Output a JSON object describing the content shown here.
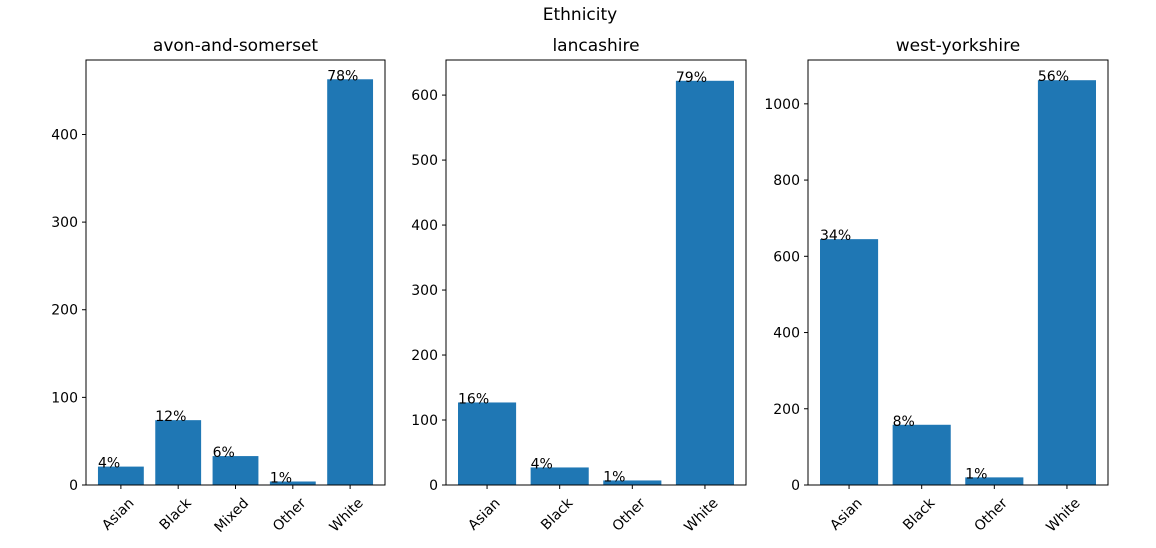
{
  "figure": {
    "title": "Ethnicity"
  },
  "chart_data": [
    {
      "type": "bar",
      "title": "avon-and-somerset",
      "xlabel": "",
      "ylabel": "",
      "categories": [
        "Asian",
        "Black",
        "Mixed",
        "Other",
        "White"
      ],
      "values": [
        21,
        74,
        33,
        4,
        463
      ],
      "labels": [
        "4%",
        "12%",
        "6%",
        "1%",
        "78%"
      ],
      "ylim": [
        0,
        485
      ],
      "yticks": [
        0,
        100,
        200,
        300,
        400
      ],
      "bar_color": "#1f77b4",
      "grid": false,
      "legend": "none"
    },
    {
      "type": "bar",
      "title": "lancashire",
      "xlabel": "",
      "ylabel": "",
      "categories": [
        "Asian",
        "Black",
        "Other",
        "White"
      ],
      "values": [
        127,
        27,
        7,
        622
      ],
      "labels": [
        "16%",
        "4%",
        "1%",
        "79%"
      ],
      "ylim": [
        0,
        654
      ],
      "yticks": [
        0,
        100,
        200,
        300,
        400,
        500,
        600
      ],
      "bar_color": "#1f77b4",
      "grid": false,
      "legend": "none"
    },
    {
      "type": "bar",
      "title": "west-yorkshire",
      "xlabel": "",
      "ylabel": "",
      "categories": [
        "Asian",
        "Black",
        "Other",
        "White"
      ],
      "values": [
        645,
        158,
        20,
        1062
      ],
      "labels": [
        "34%",
        "8%",
        "1%",
        "56%"
      ],
      "ylim": [
        0,
        1115
      ],
      "yticks": [
        0,
        200,
        400,
        600,
        800,
        1000
      ],
      "bar_color": "#1f77b4",
      "grid": false,
      "legend": "none"
    }
  ]
}
